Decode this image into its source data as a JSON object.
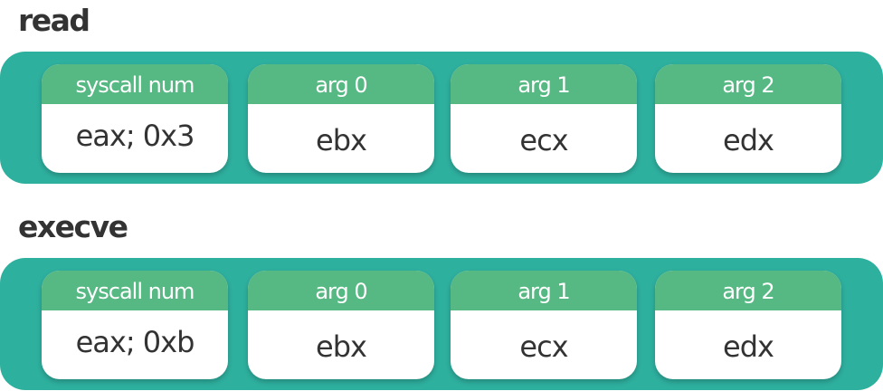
{
  "sections": [
    {
      "title": "read",
      "fields": [
        {
          "header": "syscall num",
          "value": "eax; 0x3"
        },
        {
          "header": "arg 0",
          "value": "ebx"
        },
        {
          "header": "arg 1",
          "value": "ecx"
        },
        {
          "header": "arg 2",
          "value": "edx"
        }
      ]
    },
    {
      "title": "execve",
      "fields": [
        {
          "header": "syscall num",
          "value": "eax; 0xb"
        },
        {
          "header": "arg 0",
          "value": "ebx"
        },
        {
          "header": "arg 1",
          "value": "ecx"
        },
        {
          "header": "arg 2",
          "value": "edx"
        }
      ]
    }
  ],
  "colors": {
    "band": "#2eb09f",
    "card_header": "#56b882",
    "card_body": "#ffffff",
    "title_text": "#333333"
  }
}
